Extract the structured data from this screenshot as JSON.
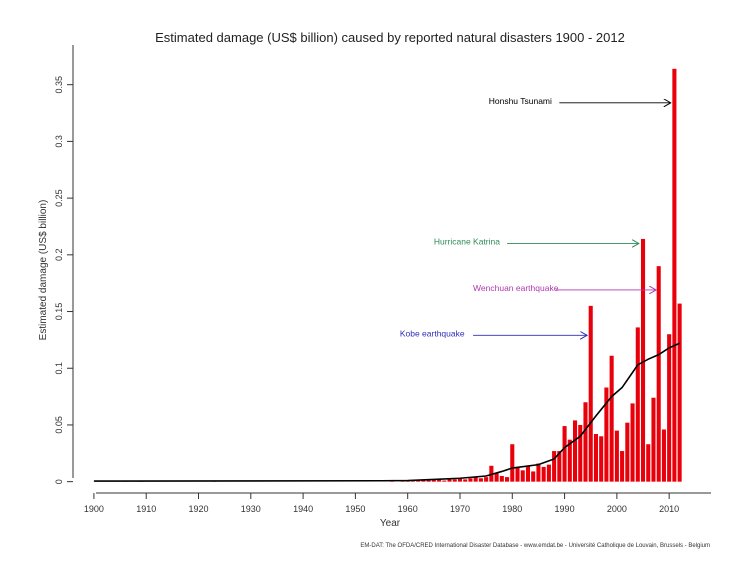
{
  "chart_data": {
    "type": "bar",
    "title": "Estimated damage (US$ billion) caused by reported natural disasters 1900 - 2012",
    "xlabel": "Year",
    "ylabel": "Estimated damage (US$ billion)",
    "xlim": [
      1896,
      2018
    ],
    "ylim": [
      -0.01,
      0.385
    ],
    "x_ticks": [
      1900,
      1910,
      1920,
      1930,
      1940,
      1950,
      1960,
      1970,
      1980,
      1990,
      2000,
      2010
    ],
    "y_ticks": [
      0,
      0.05,
      0.1,
      0.15,
      0.2,
      0.25,
      0.3,
      0.35
    ],
    "y_tick_labels": [
      "0",
      "0.05",
      "0.1",
      "0.15",
      "0.2",
      "0.25",
      "0.3",
      "0.35"
    ],
    "bar_color": "#e8000b",
    "trend_color": "#000000",
    "grid": false,
    "source": "EM-DAT: The OFDA/CRED International Disaster Database - www.emdat.be - Université Catholique de Louvain, Brussels - Belgium",
    "bars": [
      {
        "x": 1900,
        "y": 0
      },
      {
        "x": 1901,
        "y": 0
      },
      {
        "x": 1902,
        "y": 0
      },
      {
        "x": 1903,
        "y": 0
      },
      {
        "x": 1904,
        "y": 0
      },
      {
        "x": 1905,
        "y": 0
      },
      {
        "x": 1906,
        "y": 0.0005
      },
      {
        "x": 1907,
        "y": 0
      },
      {
        "x": 1908,
        "y": 0
      },
      {
        "x": 1909,
        "y": 0.0004
      },
      {
        "x": 1910,
        "y": 0
      },
      {
        "x": 1911,
        "y": 0
      },
      {
        "x": 1912,
        "y": 0
      },
      {
        "x": 1913,
        "y": 0
      },
      {
        "x": 1914,
        "y": 0
      },
      {
        "x": 1915,
        "y": 0
      },
      {
        "x": 1916,
        "y": 0
      },
      {
        "x": 1917,
        "y": 0
      },
      {
        "x": 1918,
        "y": 0
      },
      {
        "x": 1919,
        "y": 0
      },
      {
        "x": 1920,
        "y": 0
      },
      {
        "x": 1921,
        "y": 0
      },
      {
        "x": 1922,
        "y": 0
      },
      {
        "x": 1923,
        "y": 0.0008
      },
      {
        "x": 1924,
        "y": 0
      },
      {
        "x": 1925,
        "y": 0
      },
      {
        "x": 1926,
        "y": 0
      },
      {
        "x": 1927,
        "y": 0
      },
      {
        "x": 1928,
        "y": 0
      },
      {
        "x": 1929,
        "y": 0
      },
      {
        "x": 1930,
        "y": 0
      },
      {
        "x": 1931,
        "y": 0
      },
      {
        "x": 1932,
        "y": 0
      },
      {
        "x": 1933,
        "y": 0
      },
      {
        "x": 1934,
        "y": 0
      },
      {
        "x": 1935,
        "y": 0
      },
      {
        "x": 1936,
        "y": 0
      },
      {
        "x": 1937,
        "y": 0
      },
      {
        "x": 1938,
        "y": 0
      },
      {
        "x": 1939,
        "y": 0
      },
      {
        "x": 1940,
        "y": 0
      },
      {
        "x": 1941,
        "y": 0
      },
      {
        "x": 1942,
        "y": 0
      },
      {
        "x": 1943,
        "y": 0
      },
      {
        "x": 1944,
        "y": 0
      },
      {
        "x": 1945,
        "y": 0
      },
      {
        "x": 1946,
        "y": 0
      },
      {
        "x": 1947,
        "y": 0
      },
      {
        "x": 1948,
        "y": 0
      },
      {
        "x": 1949,
        "y": 0
      },
      {
        "x": 1950,
        "y": 0
      },
      {
        "x": 1951,
        "y": 0
      },
      {
        "x": 1952,
        "y": 0
      },
      {
        "x": 1953,
        "y": 0
      },
      {
        "x": 1954,
        "y": 0
      },
      {
        "x": 1955,
        "y": 0
      },
      {
        "x": 1956,
        "y": 0
      },
      {
        "x": 1957,
        "y": 0.001
      },
      {
        "x": 1958,
        "y": 0
      },
      {
        "x": 1959,
        "y": 0.0005
      },
      {
        "x": 1960,
        "y": 0.001
      },
      {
        "x": 1961,
        "y": 0.0005
      },
      {
        "x": 1962,
        "y": 0.0015
      },
      {
        "x": 1963,
        "y": 0.001
      },
      {
        "x": 1964,
        "y": 0.002
      },
      {
        "x": 1965,
        "y": 0.002
      },
      {
        "x": 1966,
        "y": 0.002
      },
      {
        "x": 1967,
        "y": 0.001
      },
      {
        "x": 1968,
        "y": 0.002
      },
      {
        "x": 1969,
        "y": 0.002
      },
      {
        "x": 1970,
        "y": 0.003
      },
      {
        "x": 1971,
        "y": 0.002
      },
      {
        "x": 1972,
        "y": 0.003
      },
      {
        "x": 1973,
        "y": 0.004
      },
      {
        "x": 1974,
        "y": 0.003
      },
      {
        "x": 1975,
        "y": 0.004
      },
      {
        "x": 1976,
        "y": 0.014
      },
      {
        "x": 1977,
        "y": 0.008
      },
      {
        "x": 1978,
        "y": 0.005
      },
      {
        "x": 1979,
        "y": 0.004
      },
      {
        "x": 1980,
        "y": 0.033
      },
      {
        "x": 1981,
        "y": 0.013
      },
      {
        "x": 1982,
        "y": 0.01
      },
      {
        "x": 1983,
        "y": 0.014
      },
      {
        "x": 1984,
        "y": 0.009
      },
      {
        "x": 1985,
        "y": 0.016
      },
      {
        "x": 1986,
        "y": 0.013
      },
      {
        "x": 1987,
        "y": 0.015
      },
      {
        "x": 1988,
        "y": 0.027
      },
      {
        "x": 1989,
        "y": 0.027
      },
      {
        "x": 1990,
        "y": 0.049
      },
      {
        "x": 1991,
        "y": 0.037
      },
      {
        "x": 1992,
        "y": 0.054
      },
      {
        "x": 1993,
        "y": 0.05
      },
      {
        "x": 1994,
        "y": 0.07
      },
      {
        "x": 1995,
        "y": 0.155
      },
      {
        "x": 1996,
        "y": 0.042
      },
      {
        "x": 1997,
        "y": 0.04
      },
      {
        "x": 1998,
        "y": 0.083
      },
      {
        "x": 1999,
        "y": 0.111
      },
      {
        "x": 2000,
        "y": 0.045
      },
      {
        "x": 2001,
        "y": 0.027
      },
      {
        "x": 2002,
        "y": 0.052
      },
      {
        "x": 2003,
        "y": 0.069
      },
      {
        "x": 2004,
        "y": 0.136
      },
      {
        "x": 2005,
        "y": 0.214
      },
      {
        "x": 2006,
        "y": 0.033
      },
      {
        "x": 2007,
        "y": 0.074
      },
      {
        "x": 2008,
        "y": 0.19
      },
      {
        "x": 2009,
        "y": 0.046
      },
      {
        "x": 2010,
        "y": 0.13
      },
      {
        "x": 2011,
        "y": 0.364
      },
      {
        "x": 2012,
        "y": 0.157
      }
    ],
    "trend": [
      {
        "x": 1900,
        "y": 0.0005
      },
      {
        "x": 1955,
        "y": 0.0008
      },
      {
        "x": 1960,
        "y": 0.001
      },
      {
        "x": 1965,
        "y": 0.002
      },
      {
        "x": 1970,
        "y": 0.003
      },
      {
        "x": 1975,
        "y": 0.005
      },
      {
        "x": 1978,
        "y": 0.009
      },
      {
        "x": 1980,
        "y": 0.012
      },
      {
        "x": 1985,
        "y": 0.015
      },
      {
        "x": 1988,
        "y": 0.02
      },
      {
        "x": 1990,
        "y": 0.03
      },
      {
        "x": 1993,
        "y": 0.04
      },
      {
        "x": 1996,
        "y": 0.058
      },
      {
        "x": 1999,
        "y": 0.075
      },
      {
        "x": 2001,
        "y": 0.083
      },
      {
        "x": 2004,
        "y": 0.103
      },
      {
        "x": 2006,
        "y": 0.108
      },
      {
        "x": 2008,
        "y": 0.112
      },
      {
        "x": 2010,
        "y": 0.118
      },
      {
        "x": 2012,
        "y": 0.122
      }
    ],
    "annotations": [
      {
        "label": "Honshu Tsunami",
        "color": "#000000",
        "text_x": 1975.5,
        "text_y": 0.333,
        "arrow_from": [
          1989,
          0.334
        ],
        "arrow_to": [
          2010.3,
          0.334
        ]
      },
      {
        "label": "Hurricane Katrina",
        "color": "#2e8b57",
        "text_x": 1965,
        "text_y": 0.209,
        "arrow_from": [
          1979,
          0.21
        ],
        "arrow_to": [
          2004.2,
          0.21
        ]
      },
      {
        "label": "Wenchuan earthquake",
        "color": "#b03ab0",
        "text_x": 1972.5,
        "text_y": 0.168,
        "arrow_from": [
          1988.3,
          0.169
        ],
        "arrow_to": [
          2007.5,
          0.169
        ]
      },
      {
        "label": "Kobe earthquake",
        "color": "#2d2db8",
        "text_x": 1958.5,
        "text_y": 0.128,
        "arrow_from": [
          1972.5,
          0.129
        ],
        "arrow_to": [
          1994.3,
          0.129
        ]
      }
    ]
  }
}
